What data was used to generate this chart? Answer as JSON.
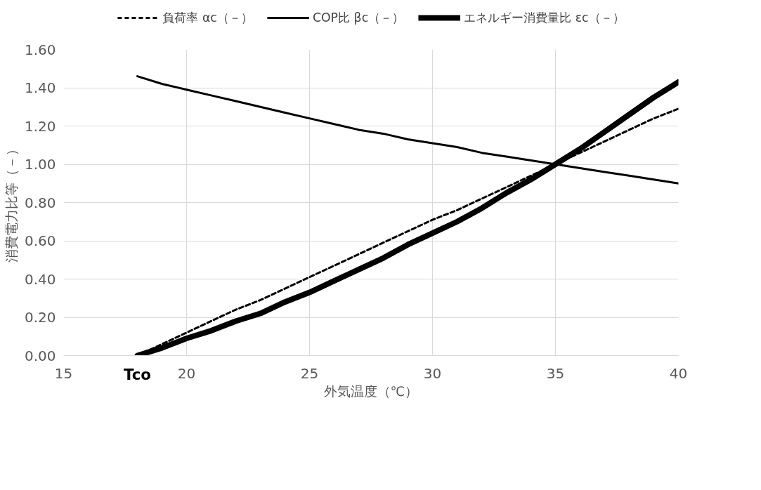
{
  "chart_data": {
    "type": "line",
    "xlabel": "外気温度（℃）",
    "ylabel": "消費電力比等（－）",
    "x": [
      18,
      19,
      20,
      21,
      22,
      23,
      24,
      25,
      26,
      27,
      28,
      29,
      30,
      31,
      32,
      33,
      34,
      35,
      36,
      37,
      38,
      39,
      40
    ],
    "series": [
      {
        "name": "負荷率 αc（－）",
        "color": "#000000",
        "line_style": "dashed",
        "values": [
          0,
          0.06,
          0.12,
          0.18,
          0.24,
          0.29,
          0.35,
          0.41,
          0.47,
          0.53,
          0.59,
          0.65,
          0.71,
          0.76,
          0.82,
          0.88,
          0.94,
          1.0,
          1.06,
          1.12,
          1.18,
          1.24,
          1.29
        ]
      },
      {
        "name": "COP比 βc（－）",
        "color": "#000000",
        "line_style": "solid",
        "values": [
          1.46,
          1.42,
          1.39,
          1.36,
          1.33,
          1.3,
          1.27,
          1.24,
          1.21,
          1.18,
          1.16,
          1.13,
          1.11,
          1.09,
          1.06,
          1.04,
          1.02,
          1.0,
          0.98,
          0.96,
          0.94,
          0.92,
          0.9
        ]
      },
      {
        "name": "エネルギー消費量比 εc（－）",
        "color": "#000000",
        "line_style": "solid",
        "values": [
          0,
          0.04,
          0.09,
          0.13,
          0.18,
          0.22,
          0.28,
          0.33,
          0.39,
          0.45,
          0.51,
          0.58,
          0.64,
          0.7,
          0.77,
          0.85,
          0.92,
          1.0,
          1.08,
          1.17,
          1.26,
          1.35,
          1.43
        ]
      }
    ],
    "xlim": [
      15,
      40
    ],
    "xticks": [
      15,
      20,
      25,
      30,
      35,
      40
    ],
    "ylim": [
      0,
      1.6
    ],
    "yticks": [
      {
        "value": 0,
        "label": "0.00"
      },
      {
        "value": 0.2,
        "label": "0.20"
      },
      {
        "value": 0.4,
        "label": "0.40"
      },
      {
        "value": 0.6,
        "label": "0.60"
      },
      {
        "value": 0.8,
        "label": "0.80"
      },
      {
        "value": 1.0,
        "label": "1.00"
      },
      {
        "value": 1.2,
        "label": "1.20"
      },
      {
        "value": 1.4,
        "label": "1.40"
      },
      {
        "value": 1.6,
        "label": "1.60"
      }
    ],
    "grid": true,
    "legend": "top",
    "annotations": [
      "Tco"
    ]
  }
}
